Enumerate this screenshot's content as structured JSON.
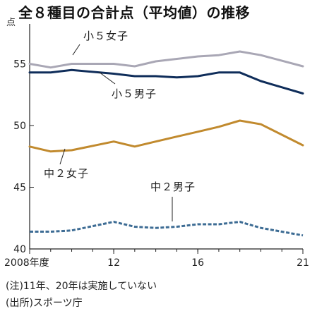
{
  "chart_data": {
    "type": "line",
    "title": "全８種目の合計点（平均値）の推移",
    "ylabel": "点",
    "x": [
      2008,
      2009,
      2010,
      2012,
      2013,
      2014,
      2015,
      2016,
      2017,
      2018,
      2019,
      2021
    ],
    "xticks": [
      2008,
      2012,
      2016,
      2021
    ],
    "xtick_labels": [
      "2008年度",
      "12",
      "16",
      "21"
    ],
    "xlim": [
      2008,
      2021
    ],
    "ylim": [
      40,
      58
    ],
    "yticks": [
      40,
      45,
      50,
      55
    ],
    "grid": false,
    "legend": "none",
    "series": [
      {
        "name": "小５女子",
        "color": "#a9a7b5",
        "style": "solid",
        "values": [
          55.0,
          54.7,
          55.0,
          55.0,
          54.8,
          55.2,
          55.4,
          55.6,
          55.7,
          56.0,
          55.7,
          54.8
        ]
      },
      {
        "name": "小５男子",
        "color": "#0f2d5a",
        "style": "solid",
        "values": [
          54.3,
          54.3,
          54.5,
          54.2,
          54.0,
          54.0,
          53.9,
          54.0,
          54.3,
          54.3,
          53.6,
          52.6
        ]
      },
      {
        "name": "中２女子",
        "color": "#c18a2e",
        "style": "solid",
        "values": [
          48.3,
          47.9,
          48.0,
          48.7,
          48.3,
          48.7,
          49.1,
          49.5,
          49.9,
          50.4,
          50.1,
          48.4
        ]
      },
      {
        "name": "中２男子",
        "color": "#3d6c94",
        "style": "dashed",
        "values": [
          41.4,
          41.4,
          41.5,
          42.2,
          41.8,
          41.7,
          41.8,
          42.0,
          42.0,
          42.2,
          41.7,
          41.1
        ]
      }
    ]
  },
  "notes": {
    "line1": "(注)11年、20年は実施していない",
    "line2": "(出所)スポーツ庁"
  }
}
